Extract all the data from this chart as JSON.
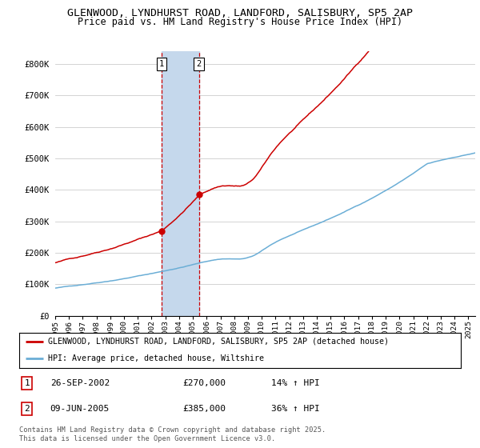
{
  "title": "GLENWOOD, LYNDHURST ROAD, LANDFORD, SALISBURY, SP5 2AP",
  "subtitle": "Price paid vs. HM Land Registry's House Price Index (HPI)",
  "ylabel_ticks": [
    "£0",
    "£100K",
    "£200K",
    "£300K",
    "£400K",
    "£500K",
    "£600K",
    "£700K",
    "£800K"
  ],
  "ytick_values": [
    0,
    100000,
    200000,
    300000,
    400000,
    500000,
    600000,
    700000,
    800000
  ],
  "ylim": [
    0,
    840000
  ],
  "xlim_start": 1995.0,
  "xlim_end": 2025.5,
  "xtick_years": [
    1995,
    1996,
    1997,
    1998,
    1999,
    2000,
    2001,
    2002,
    2003,
    2004,
    2005,
    2006,
    2007,
    2008,
    2009,
    2010,
    2011,
    2012,
    2013,
    2014,
    2015,
    2016,
    2017,
    2018,
    2019,
    2020,
    2021,
    2022,
    2023,
    2024,
    2025
  ],
  "sale1_x": 2002.73,
  "sale1_y": 270000,
  "sale1_label": "1",
  "sale2_x": 2005.44,
  "sale2_y": 385000,
  "sale2_label": "2",
  "highlight_color": "#c5d8ec",
  "vline_color": "#cc0000",
  "property_line_color": "#cc0000",
  "hpi_line_color": "#6baed6",
  "background_color": "#ffffff",
  "grid_color": "#cccccc",
  "legend_property": "GLENWOOD, LYNDHURST ROAD, LANDFORD, SALISBURY, SP5 2AP (detached house)",
  "legend_hpi": "HPI: Average price, detached house, Wiltshire",
  "table_row1": [
    "1",
    "26-SEP-2002",
    "£270,000",
    "14% ↑ HPI"
  ],
  "table_row2": [
    "2",
    "09-JUN-2005",
    "£385,000",
    "36% ↑ HPI"
  ],
  "footer": "Contains HM Land Registry data © Crown copyright and database right 2025.\nThis data is licensed under the Open Government Licence v3.0."
}
